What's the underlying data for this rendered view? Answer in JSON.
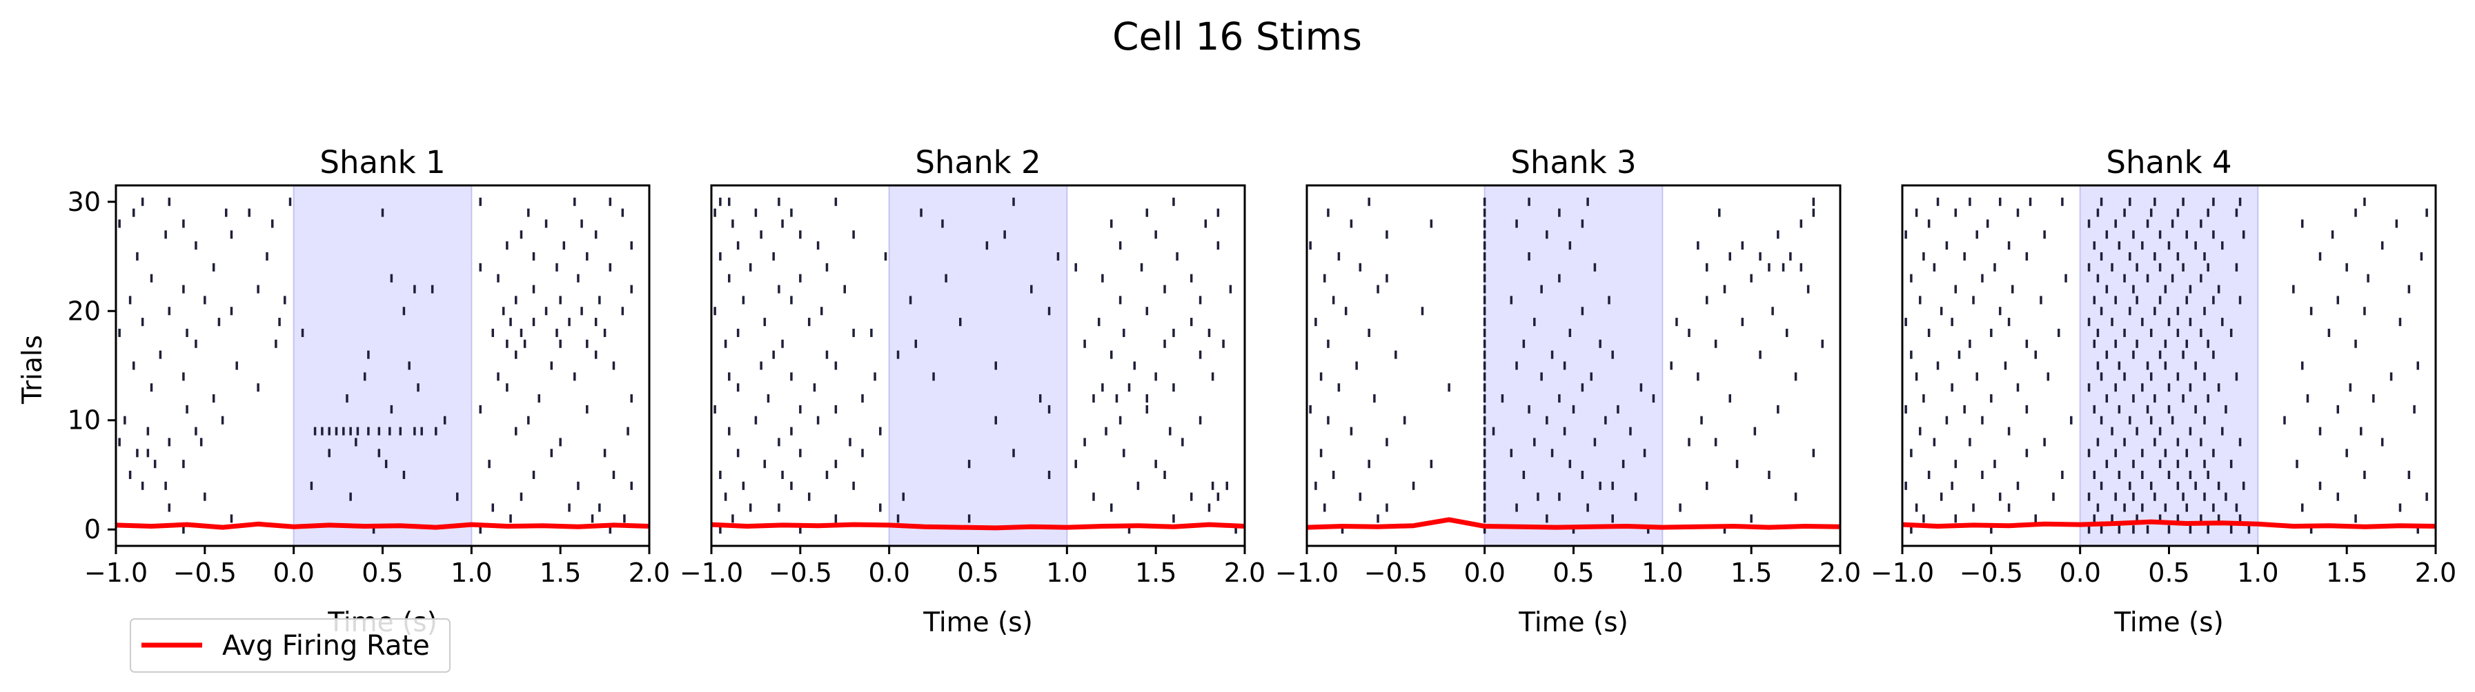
{
  "chart_data": {
    "type": "raster",
    "suptitle": "Cell 16 Stims",
    "ylabel": "Trials",
    "xlim": [
      -1.0,
      2.0
    ],
    "ylim": [
      -1.5,
      31.5
    ],
    "x_ticks": [
      -1.0,
      -0.5,
      0.0,
      0.5,
      1.0,
      1.5,
      2.0
    ],
    "x_tick_labels": [
      "−1.0",
      "−0.5",
      "0.0",
      "0.5",
      "1.0",
      "1.5",
      "2.0"
    ],
    "y_ticks": [
      0,
      10,
      20,
      30
    ],
    "y_tick_labels": [
      "0",
      "10",
      "20",
      "30"
    ],
    "stim_window": [
      0.0,
      1.0
    ],
    "colors": {
      "spikes": "#1f1f3a",
      "rate_line": "#ff0000",
      "stim_fill": "#e3e3ff",
      "stim_edge": "#c4c4f2"
    },
    "legend": {
      "label": "Avg Firing Rate",
      "placement": "lower-left"
    },
    "panels": [
      {
        "title": "Shank 1",
        "xlabel": "Time (s)",
        "trials": [
          [
            -0.62,
            0.45,
            1.05,
            1.78
          ],
          [
            -0.35,
            1.22,
            1.68,
            1.86
          ],
          [
            -0.7,
            1.12,
            1.55,
            1.72
          ],
          [
            -0.5,
            0.32,
            0.92,
            1.28
          ],
          [
            -0.85,
            -0.72,
            0.1,
            1.6,
            1.9
          ],
          [
            -0.92,
            0.62,
            1.35,
            1.8
          ],
          [
            -0.78,
            -0.62,
            0.52,
            1.1
          ],
          [
            -0.88,
            -0.82,
            0.2,
            0.48,
            1.45,
            1.75
          ],
          [
            -0.98,
            -0.7,
            -0.52,
            0.35,
            1.5
          ],
          [
            -0.82,
            -0.55,
            0.12,
            0.16,
            0.2,
            0.24,
            0.28,
            0.32,
            0.36,
            0.42,
            0.48,
            0.54,
            0.6,
            0.68,
            0.72,
            0.8,
            1.25,
            1.88
          ],
          [
            -0.95,
            -0.4,
            0.85,
            1.32
          ],
          [
            -0.6,
            0.55,
            1.05,
            1.65
          ],
          [
            -0.45,
            0.3,
            1.38,
            1.9
          ],
          [
            -0.8,
            -0.2,
            0.7,
            1.2
          ],
          [
            -0.62,
            0.4,
            1.15,
            1.58
          ],
          [
            -0.9,
            -0.32,
            0.65,
            1.45,
            1.8
          ],
          [
            -0.75,
            0.42,
            1.25,
            1.7
          ],
          [
            -0.55,
            -0.1,
            1.2,
            1.3,
            1.5,
            1.65
          ],
          [
            -0.98,
            -0.6,
            0.05,
            1.12,
            1.28,
            1.48,
            1.75
          ],
          [
            -0.85,
            -0.42,
            -0.08,
            1.22,
            1.35,
            1.55,
            1.7
          ],
          [
            -0.7,
            -0.35,
            0.62,
            1.18,
            1.42,
            1.62,
            1.85
          ],
          [
            -0.92,
            -0.5,
            -0.05,
            1.25,
            1.5,
            1.72
          ],
          [
            -0.62,
            -0.2,
            0.68,
            0.78,
            1.35,
            1.9
          ],
          [
            -0.8,
            0.55,
            1.15,
            1.6
          ],
          [
            -0.45,
            1.05,
            1.48,
            1.78
          ],
          [
            -0.88,
            -0.15,
            1.35,
            1.65
          ],
          [
            -0.55,
            1.2,
            1.52,
            1.9
          ],
          [
            -0.72,
            -0.35,
            1.28,
            1.7
          ],
          [
            -0.98,
            -0.62,
            -0.12,
            1.42,
            1.62
          ],
          [
            -0.9,
            -0.38,
            -0.25,
            0.5,
            1.32,
            1.85
          ],
          [
            -0.85,
            -0.7,
            -0.02,
            1.05,
            1.58,
            1.78
          ]
        ],
        "rate": [
          0.4,
          0.3,
          0.45,
          0.2,
          0.5,
          0.25,
          0.4,
          0.3,
          0.35,
          0.2,
          0.45,
          0.3,
          0.35,
          0.25,
          0.4,
          0.3
        ]
      },
      {
        "title": "Shank 2",
        "xlabel": "Time (s)",
        "trials": [
          [
            -0.95,
            -0.5,
            1.35,
            1.95
          ],
          [
            -0.88,
            -0.3,
            0.05,
            0.45,
            1.6
          ],
          [
            -0.78,
            -0.62,
            -0.05,
            1.25,
            1.8
          ],
          [
            -0.92,
            -0.45,
            0.08,
            1.15,
            1.7,
            1.85
          ],
          [
            -0.82,
            -0.55,
            -0.2,
            1.4,
            1.82,
            1.9
          ],
          [
            -0.95,
            -0.6,
            -0.35,
            0.9,
            1.55
          ],
          [
            -0.7,
            -0.3,
            0.45,
            1.05,
            1.5
          ],
          [
            -0.85,
            -0.5,
            -0.15,
            0.7,
            1.32
          ],
          [
            -0.62,
            -0.22,
            1.1,
            1.65
          ],
          [
            -0.9,
            -0.55,
            -0.05,
            1.22,
            1.58
          ],
          [
            -0.75,
            -0.4,
            0.6,
            1.3,
            1.75
          ],
          [
            -0.98,
            -0.5,
            -0.3,
            0.9,
            1.45
          ],
          [
            -0.68,
            -0.15,
            0.85,
            1.15,
            1.28,
            1.45
          ],
          [
            -0.85,
            -0.42,
            1.2,
            1.35,
            1.6
          ],
          [
            -0.9,
            -0.55,
            -0.08,
            0.25,
            1.5,
            1.82
          ],
          [
            -0.72,
            -0.3,
            0.6,
            1.38
          ],
          [
            -0.65,
            -0.35,
            0.05,
            1.25,
            1.75
          ],
          [
            -0.92,
            -0.6,
            0.15,
            1.1,
            1.55,
            1.88
          ],
          [
            -0.85,
            -0.2,
            -0.1,
            1.32,
            1.6,
            1.8
          ],
          [
            -0.7,
            -0.45,
            0.4,
            1.18,
            1.7
          ],
          [
            -0.98,
            -0.38,
            0.9,
            1.45
          ],
          [
            -0.82,
            -0.55,
            0.12,
            1.3,
            1.75
          ],
          [
            -0.62,
            -0.25,
            0.8,
            1.55,
            1.92
          ],
          [
            -0.9,
            -0.5,
            0.32,
            1.2,
            1.7
          ],
          [
            -0.78,
            -0.35,
            1.05,
            1.42
          ],
          [
            -0.95,
            -0.65,
            -0.02,
            0.95,
            1.62
          ],
          [
            -0.85,
            -0.4,
            0.55,
            1.3,
            1.85
          ],
          [
            -0.72,
            -0.5,
            -0.2,
            0.65,
            1.5
          ],
          [
            -0.88,
            -0.6,
            0.3,
            1.25,
            1.78
          ],
          [
            -0.98,
            -0.75,
            -0.55,
            0.18,
            1.45,
            1.85
          ],
          [
            -0.95,
            -0.9,
            -0.62,
            -0.3,
            0.7,
            1.6
          ]
        ],
        "rate": [
          0.45,
          0.3,
          0.4,
          0.35,
          0.45,
          0.4,
          0.25,
          0.2,
          0.15,
          0.25,
          0.2,
          0.3,
          0.35,
          0.25,
          0.45,
          0.3
        ]
      },
      {
        "title": "Shank 3",
        "xlabel": "Time (s)",
        "trials": [
          [
            -0.8,
            0.0,
            0.5,
            0.92,
            1.35
          ],
          [
            -0.6,
            0.0,
            0.35,
            0.72,
            1.5
          ],
          [
            -0.9,
            -0.55,
            0.0,
            0.18,
            0.58,
            1.1
          ],
          [
            -0.7,
            0.0,
            0.3,
            0.42,
            0.85,
            1.75
          ],
          [
            -0.95,
            -0.4,
            0.0,
            0.65,
            0.72,
            1.25
          ],
          [
            -0.85,
            0.0,
            0.22,
            0.55,
            1.6
          ],
          [
            -0.65,
            -0.3,
            0.0,
            0.48,
            0.78,
            1.42
          ],
          [
            -0.92,
            0.0,
            0.15,
            0.38,
            0.9,
            1.85
          ],
          [
            -0.55,
            0.0,
            0.28,
            0.62,
            1.15,
            1.3
          ],
          [
            -0.75,
            0.0,
            0.05,
            0.45,
            0.82,
            1.52
          ],
          [
            -0.88,
            -0.45,
            0.0,
            0.35,
            0.68,
            1.22
          ],
          [
            -0.98,
            0.0,
            0.25,
            0.5,
            0.75,
            1.65
          ],
          [
            -0.62,
            0.0,
            0.1,
            0.42,
            0.95,
            1.38
          ],
          [
            -0.82,
            -0.2,
            0.0,
            0.55,
            0.88
          ],
          [
            -0.92,
            0.0,
            0.32,
            0.6,
            1.2,
            1.75
          ],
          [
            -0.72,
            0.0,
            0.18,
            0.45,
            1.05
          ],
          [
            -0.5,
            0.0,
            0.38,
            0.72,
            1.55
          ],
          [
            -0.88,
            0.0,
            0.22,
            0.65,
            1.3,
            1.9
          ],
          [
            -0.65,
            0.0,
            0.48,
            1.15,
            1.7
          ],
          [
            -0.95,
            0.0,
            0.28,
            1.08,
            1.45
          ],
          [
            -0.78,
            -0.35,
            0.0,
            0.55,
            1.62
          ],
          [
            -0.85,
            0.0,
            0.15,
            0.7,
            1.25
          ],
          [
            -0.6,
            0.0,
            0.32,
            1.35,
            1.82
          ],
          [
            -0.9,
            -0.55,
            0.0,
            0.42,
            1.5
          ],
          [
            -0.7,
            0.0,
            0.62,
            1.25,
            1.6,
            1.68,
            1.78
          ],
          [
            -0.82,
            0.0,
            0.25,
            1.38,
            1.55,
            1.72
          ],
          [
            -0.98,
            0.0,
            0.48,
            1.2,
            1.45
          ],
          [
            -0.55,
            0.0,
            0.35,
            1.65
          ],
          [
            -0.75,
            -0.3,
            0.0,
            0.18,
            0.55,
            1.78
          ],
          [
            -0.88,
            0.0,
            0.42,
            1.32,
            1.85
          ],
          [
            -0.65,
            0.0,
            0.25,
            0.58,
            1.85
          ]
        ],
        "rate": [
          0.2,
          0.3,
          0.25,
          0.35,
          0.9,
          0.3,
          0.25,
          0.2,
          0.25,
          0.3,
          0.2,
          0.25,
          0.3,
          0.2,
          0.3,
          0.25
        ]
      },
      {
        "title": "Shank 4",
        "xlabel": "Time (s)",
        "trials": [
          [
            -0.95,
            -0.5,
            0.05,
            0.12,
            0.22,
            0.3,
            0.38,
            0.5,
            0.62,
            0.72,
            0.85,
            0.95,
            1.3,
            1.9
          ],
          [
            -0.88,
            -0.7,
            -0.25,
            0.08,
            0.18,
            0.32,
            0.45,
            0.55,
            0.68,
            0.78,
            0.9,
            1.55
          ],
          [
            -0.92,
            -0.6,
            -0.4,
            0.1,
            0.25,
            0.35,
            0.48,
            0.6,
            0.75,
            0.88,
            1.25,
            1.8
          ],
          [
            -0.78,
            -0.45,
            -0.15,
            0.05,
            0.2,
            0.3,
            0.42,
            0.58,
            0.7,
            0.82,
            1.45,
            1.95
          ],
          [
            -0.98,
            -0.72,
            -0.35,
            0.12,
            0.28,
            0.4,
            0.55,
            0.65,
            0.78,
            0.92,
            1.35
          ],
          [
            -0.85,
            -0.55,
            -0.1,
            0.08,
            0.22,
            0.35,
            0.5,
            0.62,
            0.72,
            1.6,
            1.85
          ],
          [
            -0.7,
            -0.48,
            0.15,
            0.3,
            0.45,
            0.55,
            0.7,
            0.85,
            1.22
          ],
          [
            -0.95,
            -0.3,
            0.05,
            0.2,
            0.35,
            0.48,
            0.6,
            0.75,
            1.5
          ],
          [
            -0.82,
            -0.62,
            -0.2,
            0.1,
            0.25,
            0.42,
            0.55,
            0.68,
            0.9,
            1.7
          ],
          [
            -0.9,
            -0.4,
            0.18,
            0.32,
            0.45,
            0.62,
            0.8,
            1.35,
            1.58
          ],
          [
            -0.75,
            -0.55,
            -0.05,
            0.12,
            0.28,
            0.4,
            0.52,
            0.7,
            1.15
          ],
          [
            -0.98,
            -0.65,
            -0.3,
            0.08,
            0.22,
            0.38,
            0.5,
            0.65,
            0.82,
            1.45,
            1.88
          ],
          [
            -0.88,
            -0.5,
            0.15,
            0.3,
            0.42,
            0.58,
            0.72,
            1.28,
            1.65
          ],
          [
            -0.72,
            -0.35,
            0.05,
            0.2,
            0.35,
            0.5,
            0.62,
            0.78,
            1.52
          ],
          [
            -0.92,
            -0.58,
            -0.18,
            0.12,
            0.25,
            0.4,
            0.55,
            0.7,
            0.88,
            1.75
          ],
          [
            -0.8,
            -0.42,
            0.1,
            0.22,
            0.38,
            0.48,
            0.65,
            1.25,
            1.9
          ],
          [
            -0.95,
            -0.68,
            -0.25,
            0.15,
            0.3,
            0.45,
            0.58,
            0.75
          ],
          [
            -0.62,
            -0.3,
            0.08,
            0.2,
            0.32,
            0.48,
            0.6,
            0.72,
            1.55
          ],
          [
            -0.85,
            -0.5,
            -0.12,
            0.1,
            0.25,
            0.4,
            0.55,
            0.68,
            0.85,
            1.4
          ],
          [
            -0.98,
            -0.72,
            -0.4,
            0.05,
            0.18,
            0.35,
            0.5,
            0.62,
            0.8,
            1.8
          ],
          [
            -0.78,
            -0.45,
            0.12,
            0.28,
            0.42,
            0.55,
            0.7,
            1.3,
            1.6
          ],
          [
            -0.9,
            -0.6,
            -0.22,
            0.08,
            0.2,
            0.32,
            0.45,
            0.6,
            0.75,
            0.9,
            1.45
          ],
          [
            -0.7,
            -0.38,
            0.15,
            0.3,
            0.48,
            0.62,
            0.78,
            1.2,
            1.85
          ],
          [
            -0.95,
            -0.55,
            -0.08,
            0.1,
            0.25,
            0.38,
            0.52,
            0.68,
            1.62
          ],
          [
            -0.82,
            -0.48,
            0.05,
            0.18,
            0.32,
            0.45,
            0.58,
            0.72,
            0.88,
            1.5
          ],
          [
            -0.88,
            -0.65,
            -0.3,
            0.12,
            0.28,
            0.42,
            0.55,
            0.7,
            1.35,
            1.92
          ],
          [
            -0.75,
            -0.4,
            0.08,
            0.22,
            0.35,
            0.5,
            0.65,
            0.8,
            1.7
          ],
          [
            -0.98,
            -0.58,
            -0.2,
            0.15,
            0.3,
            0.45,
            0.6,
            0.75,
            0.92,
            1.42
          ],
          [
            -0.85,
            -0.52,
            0.05,
            0.2,
            0.38,
            0.52,
            0.68,
            1.25,
            1.78
          ],
          [
            -0.92,
            -0.7,
            -0.35,
            0.1,
            0.25,
            0.4,
            0.55,
            0.72,
            0.88,
            1.55,
            1.95
          ],
          [
            -0.8,
            -0.62,
            -0.45,
            -0.28,
            -0.1,
            0.12,
            0.28,
            0.42,
            0.58,
            0.75,
            0.9,
            1.6
          ]
        ],
        "rate": [
          0.45,
          0.3,
          0.4,
          0.35,
          0.5,
          0.45,
          0.55,
          0.7,
          0.55,
          0.6,
          0.5,
          0.3,
          0.35,
          0.25,
          0.35,
          0.3
        ]
      }
    ]
  }
}
